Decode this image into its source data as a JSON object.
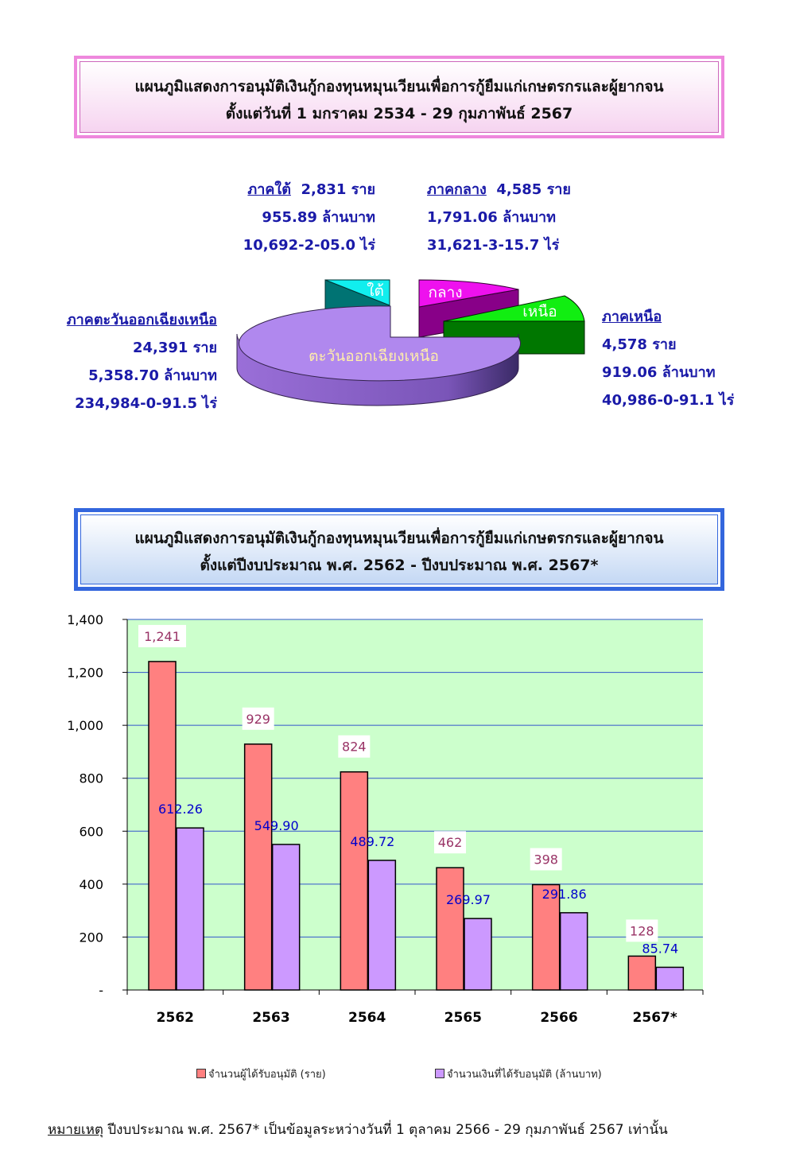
{
  "title1": {
    "line1": "แผนภูมิแสดงการอนุมัติเงินกู้กองทุนหมุนเวียนเพื่อการกู้ยืมแก่เกษตรกรและผู้ยากจน",
    "line2": "ตั้งแต่วันที่ 1 มกราคม 2534 - 29 กุมภาพันธ์ 2567"
  },
  "regions": {
    "south": {
      "name": "ภาคใต้",
      "count": "2,831 ราย",
      "amount": "955.89 ล้านบาท",
      "area": "10,692-2-05.0 ไร่",
      "slice_label": "ใต้",
      "slice_value": 2831,
      "color": "#11eeee"
    },
    "central": {
      "name": "ภาคกลาง",
      "count": "4,585 ราย",
      "amount": "1,791.06 ล้านบาท",
      "area": "31,621-3-15.7 ไร่",
      "slice_label": "กลาง",
      "slice_value": 4585,
      "color": "#ee11ee"
    },
    "north": {
      "name": "ภาคเหนือ",
      "count": "4,578 ราย",
      "amount": "919.06 ล้านบาท",
      "area": "40,986-0-91.1 ไร่",
      "slice_label": "เหนือ",
      "slice_value": 4578,
      "color": "#11ee11"
    },
    "northeast": {
      "name": "ภาคตะวันออกเฉียงเหนือ",
      "count": "24,391 ราย",
      "amount": "5,358.70 ล้านบาท",
      "area": "234,984-0-91.5 ไร่",
      "slice_label": "ตะวันออกเฉียงเหนือ",
      "slice_value": 24391,
      "color": "#b088ee"
    }
  },
  "title2": {
    "line1": "แผนภูมิแสดงการอนุมัติเงินกู้กองทุนหมุนเวียนเพื่อการกู้ยืมแก่เกษตรกรและผู้ยากจน",
    "line2": "ตั้งแต่ปีงบประมาณ พ.ศ. 2562 - ปีงบประมาณ พ.ศ. 2567*"
  },
  "chart_data": {
    "type": "bar",
    "categories": [
      "2562",
      "2563",
      "2564",
      "2565",
      "2566",
      "2567*"
    ],
    "series": [
      {
        "name": "จำนวนผู้ได้รับอนุมัติ (ราย)",
        "values": [
          1241,
          929,
          824,
          462,
          398,
          128
        ],
        "labels": [
          "1,241",
          "929",
          "824",
          "462",
          "398",
          "128"
        ],
        "color": "#ff8080",
        "label_color": "#993366"
      },
      {
        "name": "จำนวนเงินที่ได้รับอนุมัติ (ล้านบาท)",
        "values": [
          612.26,
          549.9,
          489.72,
          269.97,
          291.86,
          85.74
        ],
        "labels": [
          "612.26",
          "549.90",
          "489.72",
          "269.97",
          "291.86",
          "85.74"
        ],
        "color": "#cc99ff",
        "label_color": "#0000cc"
      }
    ],
    "ylim": [
      0,
      1400
    ],
    "yticks": [
      0,
      200,
      400,
      600,
      800,
      1000,
      1200,
      1400
    ],
    "ytick_labels": [
      "-",
      "200",
      "400",
      "600",
      "800",
      "1,000",
      "1,200",
      "1,400"
    ],
    "plot_background": "#ccffcc",
    "grid": true,
    "legend": "bottom"
  },
  "note": {
    "label": "หมายเหตุ",
    "text": " ปีงบประมาณ พ.ศ. 2567*  เป็นข้อมูลระหว่างวันที่  1 ตุลาคม 2566 - 29 กุมภาพันธ์ 2567 เท่านั้น"
  }
}
